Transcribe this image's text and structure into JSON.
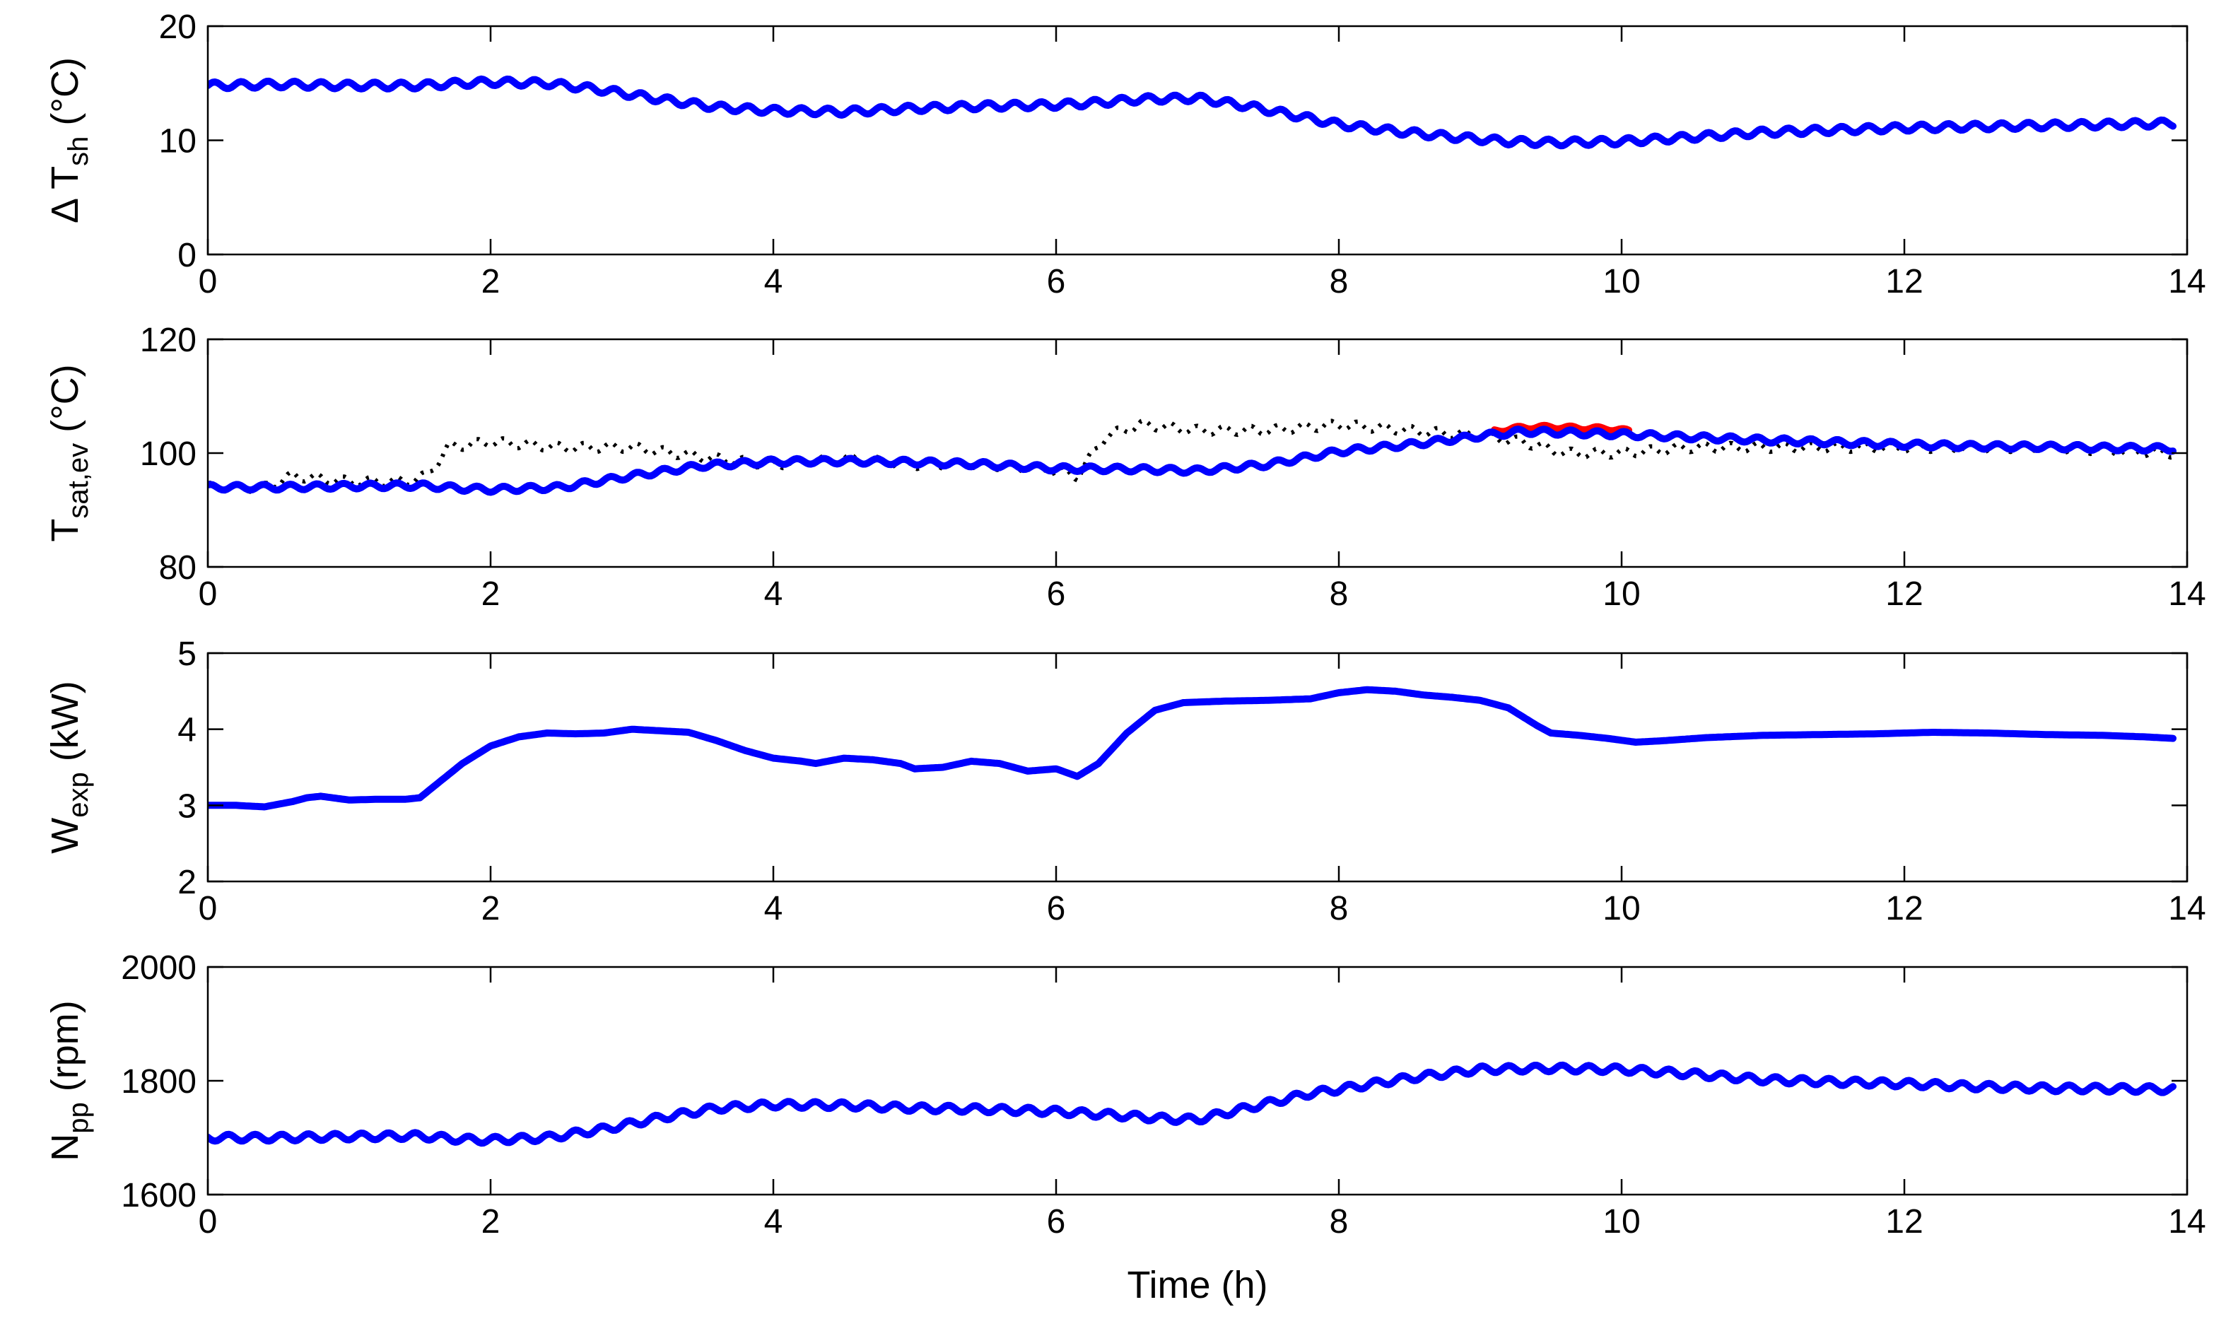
{
  "figure": {
    "xlabel": "Time (h)",
    "colors": {
      "measured": "#0000ff",
      "reference": "#000000",
      "setpoint": "#ff0000",
      "axes": "#000000"
    }
  },
  "chart_data": [
    {
      "type": "line",
      "ylabel_main": "Δ T",
      "ylabel_sub": "sh",
      "ylabel_unit": " (°C)",
      "xlim": [
        0,
        14
      ],
      "ylim": [
        0,
        20
      ],
      "xticks": [
        0,
        2,
        4,
        6,
        8,
        10,
        12,
        14
      ],
      "yticks": [
        0,
        10,
        20
      ],
      "series": [
        {
          "style": "solid",
          "color": "#0000ff",
          "ripple": 0.3,
          "x": [
            0,
            0.5,
            1,
            1.5,
            1.8,
            2,
            2.4,
            2.8,
            3.2,
            3.6,
            4,
            4.5,
            5,
            5.5,
            6,
            6.3,
            6.6,
            7,
            7.4,
            7.8,
            8,
            8.4,
            8.8,
            9.2,
            9.5,
            10,
            10.4,
            11,
            11.5,
            12,
            12.5,
            13,
            13.5,
            13.9
          ],
          "y": [
            14.8,
            14.9,
            14.8,
            14.8,
            15.0,
            15.1,
            15.0,
            14.4,
            13.6,
            12.9,
            12.6,
            12.5,
            12.8,
            13.0,
            13.1,
            13.3,
            13.6,
            13.7,
            12.9,
            11.9,
            11.4,
            10.8,
            10.3,
            9.9,
            9.8,
            9.9,
            10.2,
            10.7,
            10.9,
            11.1,
            11.2,
            11.3,
            11.4,
            11.5
          ]
        }
      ]
    },
    {
      "type": "line",
      "ylabel_main": "T",
      "ylabel_sub": "sat,ev",
      "ylabel_unit": " (°C)",
      "xlim": [
        0,
        14
      ],
      "ylim": [
        80,
        120
      ],
      "xticks": [
        0,
        2,
        4,
        6,
        8,
        10,
        12,
        14
      ],
      "yticks": [
        80,
        100,
        120
      ],
      "series": [
        {
          "style": "dotted",
          "color": "#000000",
          "ripple": 0.8,
          "x": [
            0,
            0.4,
            0.6,
            1,
            1.4,
            1.55,
            1.7,
            2,
            2.5,
            3,
            3.3,
            3.6,
            4,
            4.5,
            5,
            5.5,
            6,
            6.15,
            6.35,
            6.6,
            7,
            7.5,
            8,
            8.5,
            9,
            9.3,
            9.6,
            10,
            10.5,
            11,
            12,
            13,
            13.9
          ],
          "y": [
            94,
            94,
            96,
            95,
            95,
            96,
            101,
            102,
            101,
            101,
            100,
            99,
            98,
            99,
            98,
            98,
            97,
            96,
            103,
            105,
            104,
            104,
            105,
            104,
            103,
            102,
            100,
            100,
            101,
            101,
            101,
            101,
            100
          ]
        },
        {
          "style": "solid",
          "color": "#ff0000",
          "ripple": 0.3,
          "x": [
            9.1,
            9.3,
            9.5,
            9.7,
            9.9,
            10.05
          ],
          "y": [
            103.9,
            104.5,
            104.6,
            104.4,
            104.3,
            103.9
          ]
        },
        {
          "style": "solid",
          "color": "#0000ff",
          "ripple": 0.5,
          "x": [
            0,
            0.5,
            1,
            1.5,
            1.8,
            2,
            2.5,
            3,
            3.5,
            4,
            4.5,
            5,
            5.5,
            6,
            6.5,
            7,
            7.5,
            8,
            8.5,
            9,
            9.3,
            9.6,
            10,
            10.5,
            11,
            11.5,
            12,
            12.5,
            13,
            13.5,
            13.9
          ],
          "y": [
            94,
            94,
            94.2,
            94.3,
            93.8,
            93.6,
            94,
            96,
            97.8,
            98.5,
            98.6,
            98.4,
            98,
            97.3,
            97.2,
            96.9,
            98,
            100.3,
            101.5,
            103,
            103.8,
            103.6,
            103.3,
            102.8,
            102.3,
            101.9,
            101.5,
            101.2,
            101.1,
            100.9,
            100.8
          ]
        }
      ]
    },
    {
      "type": "line",
      "ylabel_main": "W",
      "ylabel_sub": "exp",
      "ylabel_unit": " (kW)",
      "xlim": [
        0,
        14
      ],
      "ylim": [
        2,
        5
      ],
      "xticks": [
        0,
        2,
        4,
        6,
        8,
        10,
        12,
        14
      ],
      "yticks": [
        2,
        3,
        4,
        5
      ],
      "series": [
        {
          "style": "solid",
          "color": "#0000ff",
          "ripple": 0,
          "x": [
            0,
            0.2,
            0.4,
            0.6,
            0.7,
            0.8,
            1,
            1.2,
            1.4,
            1.5,
            1.6,
            1.8,
            2,
            2.2,
            2.4,
            2.6,
            2.8,
            3,
            3.2,
            3.4,
            3.6,
            3.8,
            4,
            4.2,
            4.3,
            4.5,
            4.7,
            4.9,
            5,
            5.2,
            5.4,
            5.6,
            5.8,
            6,
            6.15,
            6.3,
            6.5,
            6.7,
            6.9,
            7.2,
            7.5,
            7.8,
            8,
            8.2,
            8.4,
            8.6,
            8.8,
            9,
            9.2,
            9.4,
            9.5,
            9.7,
            9.9,
            10.1,
            10.3,
            10.6,
            11,
            11.4,
            11.8,
            12.2,
            12.6,
            13,
            13.4,
            13.7,
            13.9
          ],
          "y": [
            3.0,
            3.0,
            2.98,
            3.05,
            3.1,
            3.12,
            3.07,
            3.08,
            3.08,
            3.1,
            3.25,
            3.55,
            3.78,
            3.9,
            3.95,
            3.94,
            3.95,
            4.0,
            3.98,
            3.96,
            3.85,
            3.72,
            3.62,
            3.58,
            3.55,
            3.62,
            3.6,
            3.55,
            3.48,
            3.5,
            3.58,
            3.55,
            3.45,
            3.48,
            3.38,
            3.55,
            3.95,
            4.25,
            4.35,
            4.37,
            4.38,
            4.4,
            4.48,
            4.52,
            4.5,
            4.45,
            4.42,
            4.38,
            4.28,
            4.05,
            3.95,
            3.92,
            3.88,
            3.83,
            3.85,
            3.89,
            3.92,
            3.93,
            3.94,
            3.96,
            3.95,
            3.93,
            3.92,
            3.9,
            3.88
          ]
        }
      ]
    },
    {
      "type": "line",
      "ylabel_main": "N",
      "ylabel_sub": "pp",
      "ylabel_unit": " (rpm)",
      "xlim": [
        0,
        14
      ],
      "ylim": [
        1600,
        2000
      ],
      "xticks": [
        0,
        2,
        4,
        6,
        8,
        10,
        12,
        14
      ],
      "yticks": [
        1600,
        1800,
        2000
      ],
      "series": [
        {
          "style": "solid",
          "color": "#0000ff",
          "ripple": 6,
          "x": [
            0,
            0.5,
            1,
            1.5,
            1.8,
            2,
            2.4,
            2.8,
            3.2,
            3.6,
            4,
            4.5,
            5,
            5.5,
            6,
            6.4,
            6.8,
            7,
            7.4,
            7.8,
            8,
            8.5,
            9,
            9.5,
            10,
            10.5,
            11,
            11.5,
            12,
            12.5,
            13,
            13.5,
            13.9
          ],
          "y": [
            1700,
            1700,
            1702,
            1703,
            1697,
            1696,
            1700,
            1715,
            1735,
            1752,
            1758,
            1757,
            1752,
            1750,
            1746,
            1740,
            1733,
            1732,
            1755,
            1778,
            1785,
            1805,
            1820,
            1822,
            1820,
            1812,
            1802,
            1798,
            1795,
            1790,
            1787,
            1786,
            1785
          ]
        }
      ]
    }
  ]
}
